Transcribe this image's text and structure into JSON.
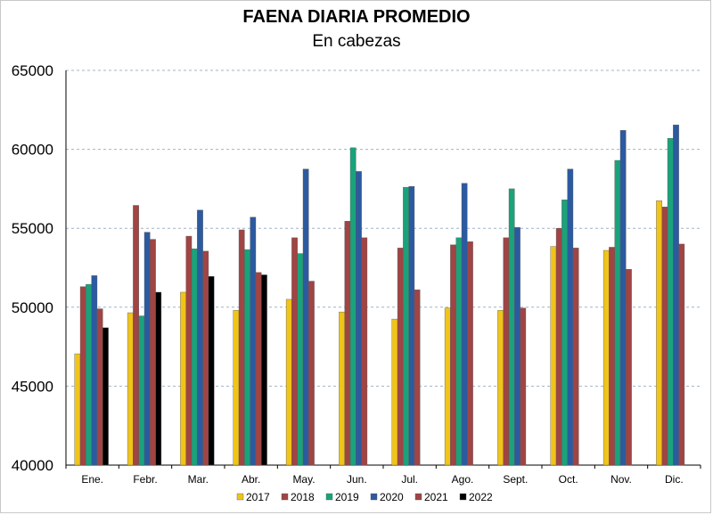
{
  "chart_data": {
    "type": "bar",
    "title": "FAENA DIARIA PROMEDIO",
    "subtitle": "En cabezas",
    "xlabel": "",
    "ylabel": "",
    "ylim": [
      40000,
      65000
    ],
    "yticks": [
      "40000",
      "45000",
      "50000",
      "55000",
      "60000",
      "65000"
    ],
    "grid": true,
    "legend_position": "bottom",
    "categories": [
      "Ene.",
      "Febr.",
      "Mar.",
      "Abr.",
      "May.",
      "Jun.",
      "Jul.",
      "Ago.",
      "Sept.",
      "Oct.",
      "Nov.",
      "Dic."
    ],
    "series": [
      {
        "name": "2017",
        "color": "#f0c419",
        "values": [
          47050,
          49650,
          50950,
          49800,
          50500,
          49700,
          49250,
          49950,
          49800,
          53850,
          53600,
          56750
        ]
      },
      {
        "name": "2018",
        "color": "#a04444",
        "values": [
          51300,
          56450,
          54500,
          54900,
          54400,
          55450,
          53750,
          53950,
          54400,
          55000,
          53800,
          56350
        ]
      },
      {
        "name": "2019",
        "color": "#1aa37a",
        "values": [
          51450,
          49450,
          53700,
          53650,
          53400,
          60100,
          57600,
          54400,
          57500,
          56800,
          59300,
          60700
        ]
      },
      {
        "name": "2020",
        "color": "#2c5aa0",
        "values": [
          52000,
          54750,
          56150,
          55700,
          58750,
          58600,
          57650,
          57850,
          55050,
          58750,
          61200,
          61550
        ]
      },
      {
        "name": "2021",
        "color": "#a04444",
        "values": [
          49900,
          54300,
          53550,
          52200,
          51650,
          54400,
          51100,
          54150,
          49950,
          53750,
          52400,
          54000
        ]
      },
      {
        "name": "2022",
        "color": "#000000",
        "values": [
          48700,
          50950,
          51950,
          52050,
          null,
          null,
          null,
          null,
          null,
          null,
          null,
          null
        ]
      }
    ]
  }
}
